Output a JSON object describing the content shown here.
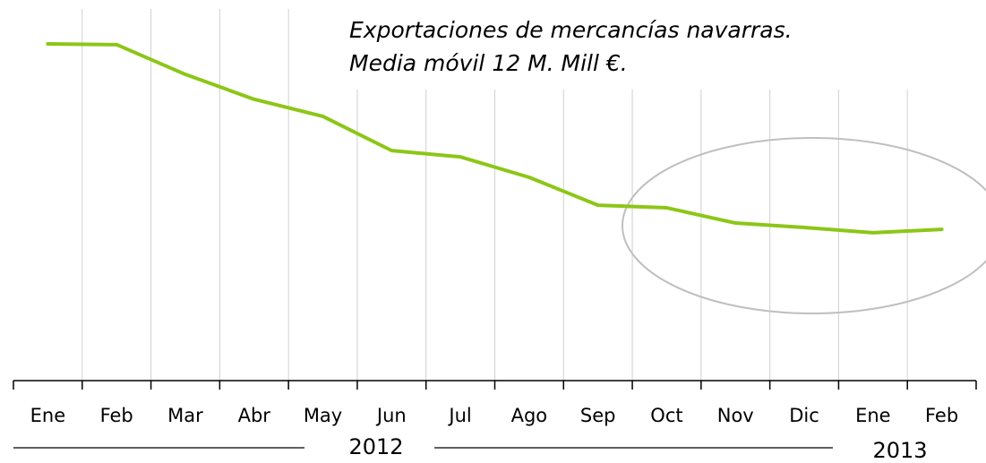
{
  "chart_data": {
    "type": "line",
    "title_lines": [
      "Exportaciones de mercancías navarras.",
      "Media móvil 12 M. Mill €."
    ],
    "categories": [
      "Ene",
      "Feb",
      "Mar",
      "Abr",
      "May",
      "Jun",
      "Jul",
      "Ago",
      "Sep",
      "Oct",
      "Nov",
      "Dic",
      "Ene",
      "Feb"
    ],
    "year_labels": [
      "2012",
      "2013"
    ],
    "series": [
      {
        "color": "#8cc617",
        "values": [
          90.6,
          90.4,
          82.4,
          75.7,
          71.1,
          61.9,
          60.2,
          54.7,
          47.2,
          46.5,
          42.4,
          41.2,
          39.8,
          40.7
        ]
      }
    ],
    "ylim": [
      0,
      100
    ],
    "grid": true
  }
}
